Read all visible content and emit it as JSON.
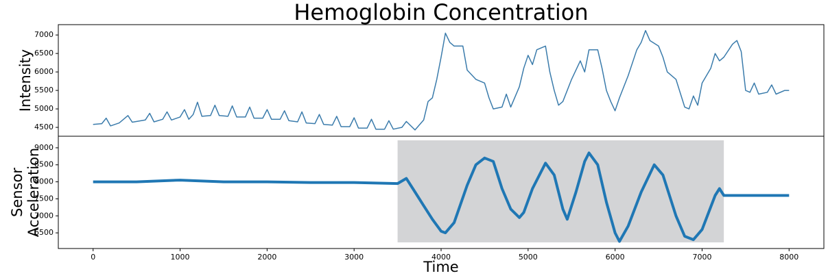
{
  "chart_data": [
    {
      "type": "line",
      "title": "Hemoglobin Concentration",
      "ylabel": [
        "Intensity"
      ],
      "color": "#3a7bab",
      "xlim": [
        -400,
        8400
      ],
      "ylim": [
        4260,
        7280
      ],
      "yticks": [
        4500,
        5000,
        5500,
        6000,
        6500,
        7000
      ],
      "x": [
        0,
        100,
        150,
        200,
        300,
        400,
        450,
        600,
        650,
        700,
        800,
        850,
        900,
        1000,
        1050,
        1100,
        1150,
        1200,
        1250,
        1350,
        1400,
        1450,
        1550,
        1600,
        1650,
        1750,
        1800,
        1850,
        1950,
        2000,
        2050,
        2150,
        2200,
        2250,
        2350,
        2400,
        2450,
        2550,
        2600,
        2650,
        2750,
        2800,
        2850,
        2950,
        3000,
        3050,
        3150,
        3200,
        3250,
        3350,
        3400,
        3450,
        3550,
        3600,
        3700,
        3800,
        3850,
        3900,
        3950,
        4000,
        4050,
        4100,
        4150,
        4250,
        4300,
        4400,
        4500,
        4550,
        4600,
        4700,
        4750,
        4800,
        4900,
        4950,
        5000,
        5050,
        5100,
        5200,
        5250,
        5300,
        5350,
        5400,
        5500,
        5600,
        5650,
        5700,
        5800,
        5850,
        5900,
        5950,
        6000,
        6050,
        6150,
        6250,
        6300,
        6350,
        6400,
        6500,
        6550,
        6600,
        6700,
        6800,
        6850,
        6900,
        6950,
        7000,
        7100,
        7150,
        7200,
        7250,
        7350,
        7400,
        7450,
        7500,
        7550,
        7600,
        7650,
        7750,
        7800,
        7850,
        7950,
        8000
      ],
      "values": [
        4580,
        4600,
        4750,
        4540,
        4620,
        4820,
        4640,
        4700,
        4880,
        4650,
        4720,
        4920,
        4700,
        4780,
        4980,
        4720,
        4850,
        5180,
        4800,
        4820,
        5100,
        4820,
        4800,
        5080,
        4780,
        4780,
        5050,
        4750,
        4750,
        4980,
        4720,
        4720,
        4950,
        4680,
        4650,
        4920,
        4620,
        4600,
        4850,
        4580,
        4560,
        4800,
        4520,
        4520,
        4760,
        4480,
        4480,
        4720,
        4450,
        4450,
        4680,
        4450,
        4500,
        4660,
        4430,
        4700,
        5200,
        5300,
        5800,
        6400,
        7050,
        6800,
        6700,
        6700,
        6050,
        5800,
        5700,
        5300,
        5000,
        5050,
        5400,
        5050,
        5600,
        6100,
        6450,
        6200,
        6600,
        6700,
        6000,
        5500,
        5100,
        5200,
        5800,
        6300,
        6000,
        6600,
        6600,
        6100,
        5500,
        5200,
        4950,
        5300,
        5900,
        6600,
        6800,
        7120,
        6850,
        6700,
        6400,
        6000,
        5800,
        5050,
        5000,
        5350,
        5100,
        5700,
        6100,
        6500,
        6300,
        6400,
        6750,
        6850,
        6550,
        5500,
        5450,
        5700,
        5400,
        5450,
        5650,
        5400,
        5500,
        5500
      ]
    },
    {
      "type": "line",
      "ylabel": [
        "Sensor",
        "Acceleration"
      ],
      "xlabel": "Time",
      "color": "#1f77b4",
      "xlim": [
        -400,
        8400
      ],
      "ylim": [
        6040,
        9340
      ],
      "yticks": [
        6500,
        7000,
        7500,
        8000,
        8500,
        9000
      ],
      "xticks": [
        0,
        1000,
        2000,
        3000,
        4000,
        5000,
        6000,
        7000,
        8000
      ],
      "highlight": {
        "x": [
          3500,
          7250
        ],
        "y": [
          6220,
          9220
        ],
        "color": "#d3d4d6"
      },
      "x": [
        0,
        500,
        1000,
        1500,
        2000,
        2500,
        3000,
        3500,
        3600,
        3700,
        3800,
        3900,
        4000,
        4050,
        4150,
        4300,
        4400,
        4500,
        4600,
        4700,
        4800,
        4900,
        4950,
        5050,
        5200,
        5300,
        5400,
        5450,
        5550,
        5650,
        5700,
        5800,
        5900,
        6000,
        6050,
        6150,
        6300,
        6450,
        6550,
        6700,
        6800,
        6900,
        7000,
        7150,
        7200,
        7250,
        7350,
        7600,
        7800,
        8000
      ],
      "values": [
        8000,
        8000,
        8050,
        8000,
        8000,
        7980,
        7980,
        7950,
        8100,
        7700,
        7300,
        6900,
        6550,
        6500,
        6800,
        7900,
        8500,
        8700,
        8600,
        7800,
        7200,
        6950,
        7100,
        7800,
        8550,
        8200,
        7200,
        6900,
        7700,
        8600,
        8850,
        8500,
        7400,
        6500,
        6250,
        6700,
        7700,
        8500,
        8200,
        7000,
        6400,
        6300,
        6600,
        7600,
        7800,
        7600,
        7600,
        7600,
        7600,
        7600
      ]
    }
  ]
}
